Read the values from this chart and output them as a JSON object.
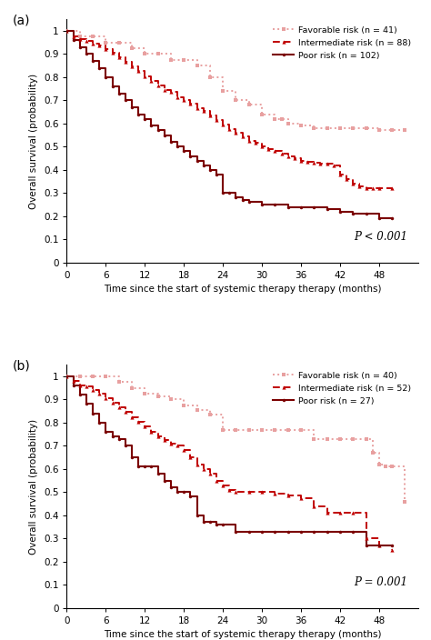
{
  "fig_width": 4.74,
  "fig_height": 7.04,
  "dpi": 100,
  "colors": {
    "favorable": "#E8A0A0",
    "intermediate": "#C00000",
    "poor": "#7B0000"
  },
  "panel_a": {
    "label": "(a)",
    "pvalue": "P < 0.001",
    "favorable": {
      "label": "Favorable risk (n = 41)",
      "times": [
        0,
        2,
        4,
        6,
        8,
        10,
        12,
        14,
        16,
        18,
        20,
        22,
        24,
        26,
        28,
        30,
        32,
        33,
        34,
        36,
        38,
        40,
        42,
        44,
        46,
        48,
        50,
        52
      ],
      "surv": [
        1.0,
        0.975,
        0.975,
        0.95,
        0.95,
        0.925,
        0.9,
        0.9,
        0.875,
        0.875,
        0.85,
        0.8,
        0.74,
        0.7,
        0.68,
        0.64,
        0.62,
        0.62,
        0.6,
        0.59,
        0.58,
        0.58,
        0.58,
        0.58,
        0.58,
        0.57,
        0.57,
        0.57
      ]
    },
    "intermediate": {
      "label": "Intermediate risk (n = 88)",
      "times": [
        0,
        1,
        2,
        3,
        4,
        5,
        6,
        7,
        8,
        9,
        10,
        11,
        12,
        13,
        14,
        15,
        16,
        17,
        18,
        19,
        20,
        21,
        22,
        23,
        24,
        25,
        26,
        27,
        28,
        29,
        30,
        31,
        32,
        33,
        34,
        35,
        36,
        37,
        38,
        39,
        40,
        41,
        42,
        43,
        44,
        45,
        46,
        47,
        48,
        50
      ],
      "surv": [
        1.0,
        0.975,
        0.965,
        0.955,
        0.945,
        0.935,
        0.92,
        0.905,
        0.885,
        0.865,
        0.845,
        0.825,
        0.805,
        0.785,
        0.765,
        0.745,
        0.735,
        0.715,
        0.7,
        0.685,
        0.665,
        0.655,
        0.635,
        0.615,
        0.595,
        0.575,
        0.56,
        0.545,
        0.525,
        0.515,
        0.5,
        0.49,
        0.48,
        0.47,
        0.46,
        0.45,
        0.44,
        0.435,
        0.43,
        0.425,
        0.425,
        0.42,
        0.38,
        0.36,
        0.34,
        0.33,
        0.32,
        0.32,
        0.32,
        0.32
      ]
    },
    "poor": {
      "label": "Poor risk (n = 102)",
      "times": [
        0,
        1,
        2,
        3,
        4,
        5,
        6,
        7,
        8,
        9,
        10,
        11,
        12,
        13,
        14,
        15,
        16,
        17,
        18,
        19,
        20,
        21,
        22,
        23,
        24,
        25,
        26,
        27,
        28,
        30,
        32,
        34,
        36,
        38,
        40,
        42,
        44,
        46,
        48,
        50
      ],
      "surv": [
        1.0,
        0.96,
        0.93,
        0.9,
        0.87,
        0.84,
        0.8,
        0.76,
        0.73,
        0.7,
        0.67,
        0.64,
        0.62,
        0.59,
        0.57,
        0.55,
        0.52,
        0.5,
        0.48,
        0.46,
        0.44,
        0.42,
        0.4,
        0.38,
        0.3,
        0.3,
        0.28,
        0.27,
        0.26,
        0.25,
        0.25,
        0.24,
        0.24,
        0.24,
        0.23,
        0.22,
        0.21,
        0.21,
        0.19,
        0.19
      ]
    }
  },
  "panel_b": {
    "label": "(b)",
    "pvalue": "P = 0.001",
    "favorable": {
      "label": "Favorable risk (n = 40)",
      "times": [
        0,
        2,
        4,
        6,
        8,
        10,
        12,
        14,
        16,
        18,
        20,
        22,
        24,
        26,
        28,
        30,
        32,
        34,
        36,
        38,
        40,
        42,
        44,
        46,
        47,
        48,
        49,
        50,
        52
      ],
      "surv": [
        1.0,
        1.0,
        1.0,
        1.0,
        0.975,
        0.95,
        0.925,
        0.915,
        0.9,
        0.875,
        0.855,
        0.835,
        0.77,
        0.77,
        0.77,
        0.77,
        0.77,
        0.77,
        0.77,
        0.73,
        0.73,
        0.73,
        0.73,
        0.73,
        0.67,
        0.62,
        0.61,
        0.61,
        0.46
      ]
    },
    "intermediate": {
      "label": "Intermediate risk (n = 52)",
      "times": [
        0,
        1,
        2,
        3,
        4,
        5,
        6,
        7,
        8,
        9,
        10,
        11,
        12,
        13,
        14,
        15,
        16,
        17,
        18,
        19,
        20,
        21,
        22,
        23,
        24,
        25,
        26,
        28,
        30,
        32,
        34,
        36,
        38,
        40,
        42,
        44,
        46,
        48,
        50
      ],
      "surv": [
        1.0,
        0.98,
        0.96,
        0.955,
        0.94,
        0.925,
        0.905,
        0.885,
        0.865,
        0.845,
        0.825,
        0.805,
        0.785,
        0.76,
        0.74,
        0.725,
        0.71,
        0.7,
        0.68,
        0.65,
        0.62,
        0.6,
        0.58,
        0.55,
        0.53,
        0.51,
        0.5,
        0.5,
        0.5,
        0.495,
        0.485,
        0.475,
        0.44,
        0.41,
        0.41,
        0.41,
        0.3,
        0.27,
        0.25
      ]
    },
    "poor": {
      "label": "Poor risk (n = 27)",
      "times": [
        0,
        1,
        2,
        3,
        4,
        5,
        6,
        7,
        8,
        9,
        10,
        11,
        12,
        13,
        14,
        15,
        16,
        17,
        18,
        19,
        20,
        21,
        22,
        23,
        24,
        26,
        28,
        30,
        32,
        34,
        36,
        38,
        40,
        42,
        44,
        46,
        48,
        50
      ],
      "surv": [
        1.0,
        0.96,
        0.92,
        0.88,
        0.84,
        0.8,
        0.76,
        0.74,
        0.73,
        0.7,
        0.65,
        0.61,
        0.61,
        0.61,
        0.58,
        0.55,
        0.52,
        0.5,
        0.5,
        0.48,
        0.4,
        0.37,
        0.37,
        0.36,
        0.36,
        0.33,
        0.33,
        0.33,
        0.33,
        0.33,
        0.33,
        0.33,
        0.33,
        0.33,
        0.33,
        0.27,
        0.27,
        0.27
      ]
    }
  },
  "xlabel": "Time since the start of systemic therapy therapy (months)",
  "ylabel": "Overall survival (probability)",
  "xticks": [
    0,
    6,
    12,
    18,
    24,
    30,
    36,
    42,
    48
  ],
  "yticks": [
    0,
    0.1,
    0.2,
    0.3,
    0.4,
    0.5,
    0.6,
    0.7,
    0.8,
    0.9,
    1
  ],
  "xlim": [
    0,
    54
  ],
  "ylim": [
    0,
    1.05
  ]
}
